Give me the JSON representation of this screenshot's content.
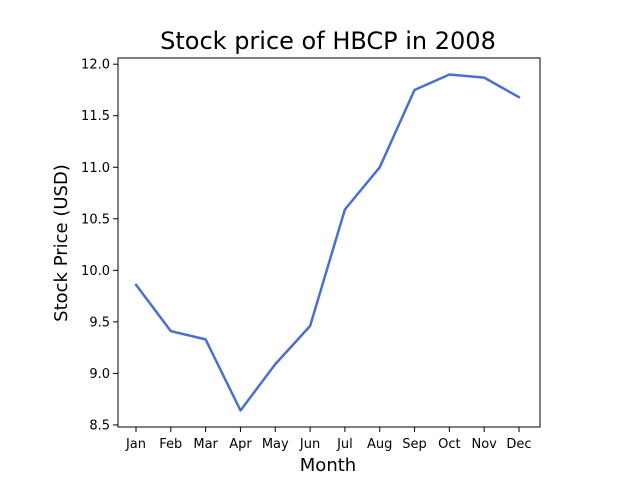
{
  "chart_data": {
    "type": "line",
    "title": "Stock price of HBCP in 2008",
    "xlabel": "Month",
    "ylabel": "Stock Price (USD)",
    "categories": [
      "Jan",
      "Feb",
      "Mar",
      "Apr",
      "May",
      "Jun",
      "Jul",
      "Aug",
      "Sep",
      "Oct",
      "Nov",
      "Dec"
    ],
    "series": [
      {
        "values": [
          9.86,
          9.41,
          9.33,
          8.64,
          9.09,
          9.46,
          10.59,
          11.0,
          11.75,
          11.9,
          11.87,
          11.68
        ]
      }
    ],
    "yticks": [
      8.5,
      9.0,
      9.5,
      10.0,
      10.5,
      11.0,
      11.5,
      12.0
    ],
    "ytick_labels": [
      "8.5",
      "9.0",
      "9.5",
      "10.0",
      "10.5",
      "11.0",
      "11.5",
      "12.0"
    ],
    "ylim": [
      8.48,
      12.06
    ],
    "grid": false,
    "line_color": "#4a6fcf"
  }
}
